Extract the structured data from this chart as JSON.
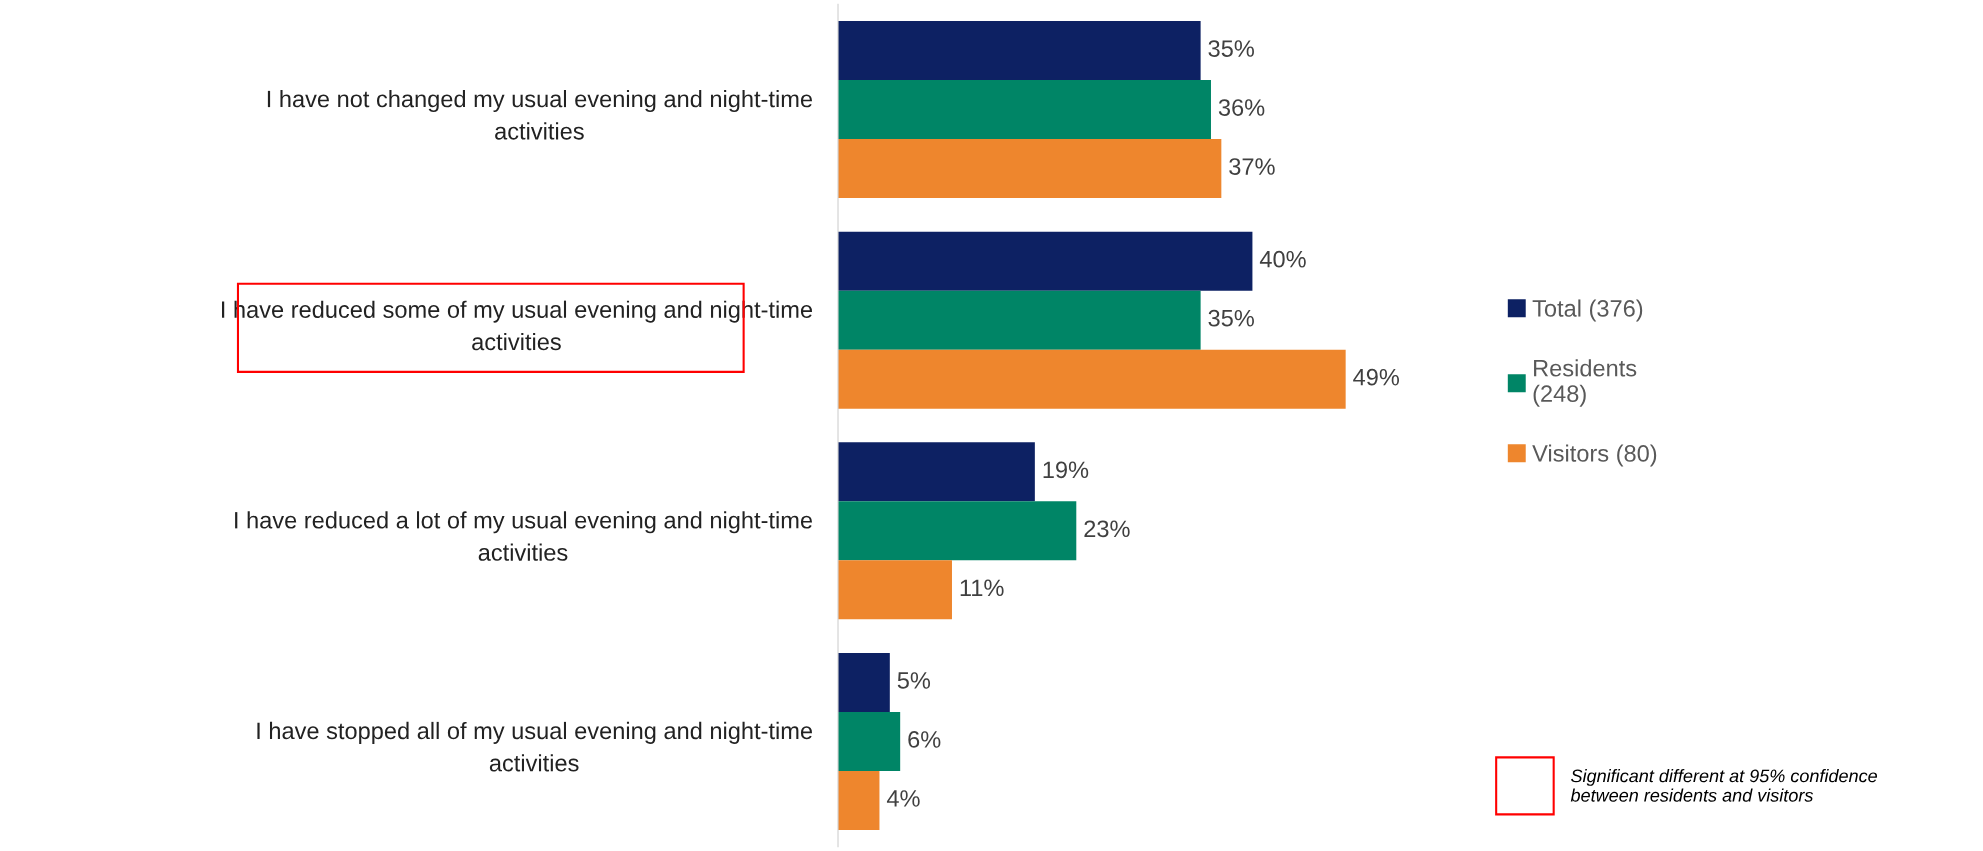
{
  "chart_data": {
    "type": "bar",
    "orientation": "horizontal",
    "categories": [
      "I have not changed my usual evening and night-time\nactivities",
      "I have reduced some of my usual evening and night-time\nactivities",
      "I have reduced a lot of my usual evening and night-time\nactivities",
      "I have stopped all of my usual evening and night-time\nactivities"
    ],
    "series": [
      {
        "name": "Total (376)",
        "color": "#0d2163",
        "values": [
          35,
          40,
          19,
          5
        ],
        "value_labels": [
          "35%",
          "40%",
          "19%",
          "5%"
        ]
      },
      {
        "name": "Residents\n(248)",
        "color": "#008566",
        "values": [
          36,
          35,
          23,
          6
        ],
        "value_labels": [
          "36%",
          "35%",
          "23%",
          "6%"
        ]
      },
      {
        "name": "Visitors (80)",
        "color": "#ee862d",
        "values": [
          37,
          49,
          11,
          4
        ],
        "value_labels": [
          "37%",
          "49%",
          "11%",
          "4%"
        ]
      }
    ],
    "legend": "right",
    "grid": false,
    "annotations": [
      "Significant different at 95% confidence\nbetween residents and visitors"
    ]
  }
}
